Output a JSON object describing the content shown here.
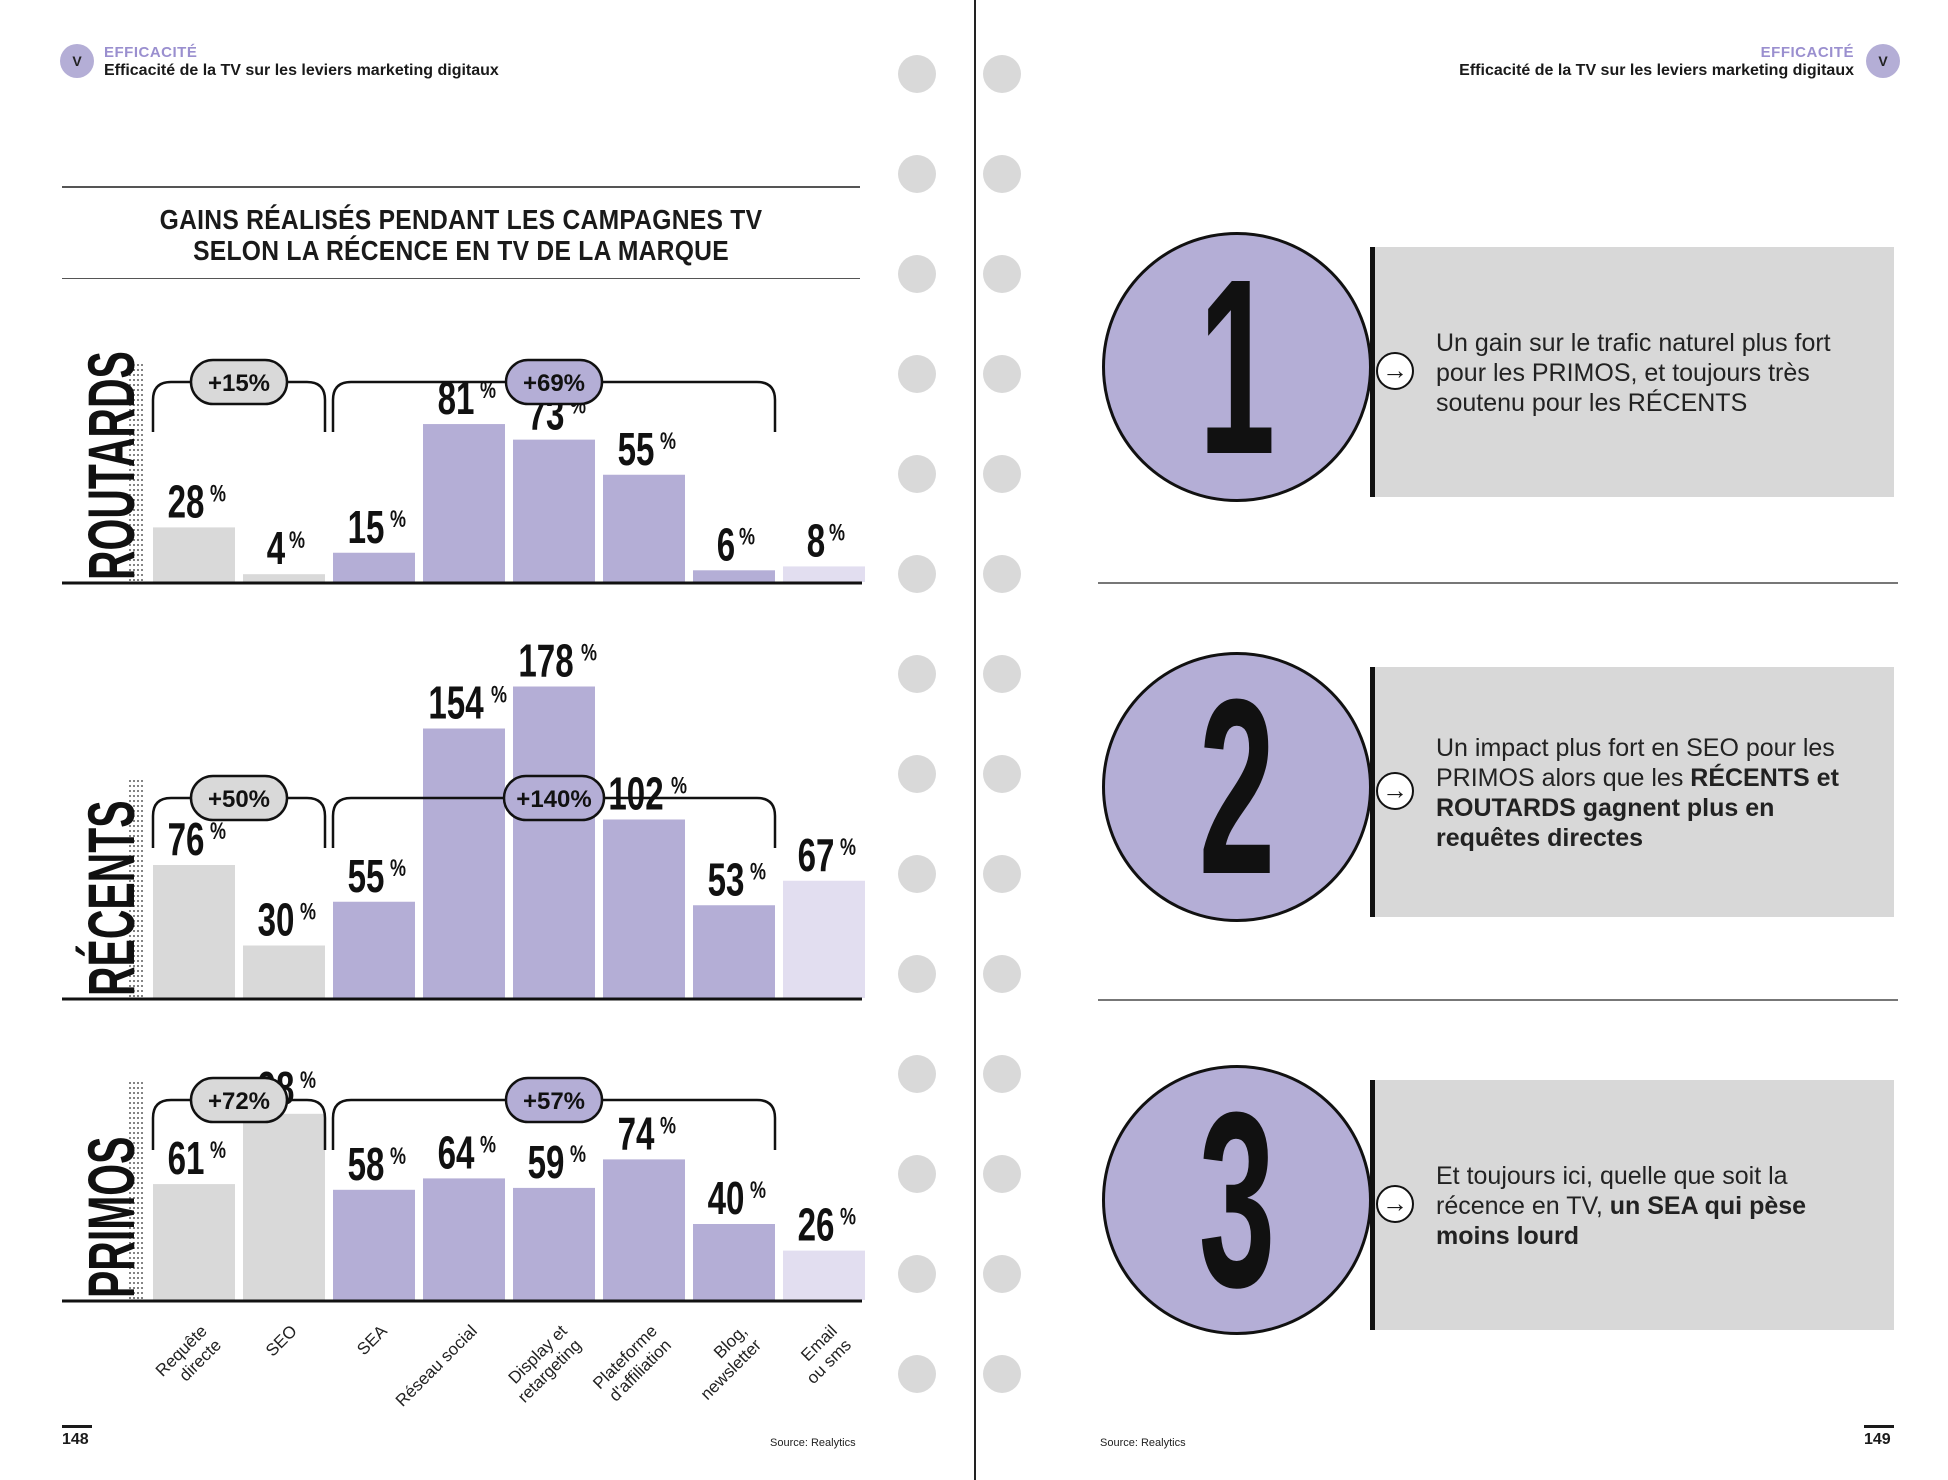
{
  "left_page": {
    "badge": "V",
    "section": "EFFICACITÉ",
    "subtitle": "Efficacité de la TV sur les leviers marketing digitaux",
    "page_number": "148",
    "source": "Source: Realytics"
  },
  "right_page": {
    "badge": "V",
    "section": "EFFICACITÉ",
    "subtitle": "Efficacité de la TV sur les leviers marketing digitaux",
    "page_number": "149",
    "source": "Source: Realytics"
  },
  "chart_data": {
    "type": "bar",
    "title_line1": "GAINS RÉALISÉS PENDANT LES CAMPAGNES TV",
    "title_line2": "SELON LA RÉCENCE EN TV DE LA MARQUE",
    "unit": "%",
    "categories": [
      "Requête directe",
      "SEO",
      "SEA",
      "Réseau social",
      "Display et retargeting",
      "Plateforme d'affiliation",
      "Blog, newsletter",
      "Email ou sms"
    ],
    "category_lines": [
      [
        "Requête",
        "directe"
      ],
      [
        "SEO"
      ],
      [
        "SEA"
      ],
      [
        "Réseau social"
      ],
      [
        "Display et",
        "retargeting"
      ],
      [
        "Plateforme",
        "d'affiliation"
      ],
      [
        "Blog,",
        "newsletter"
      ],
      [
        "Email",
        "ou sms"
      ]
    ],
    "series": [
      {
        "name": "ROUTARDS",
        "values": [
          28,
          4,
          15,
          81,
          73,
          55,
          6,
          8
        ],
        "group_gains": [
          "+15%",
          "+69%"
        ]
      },
      {
        "name": "RÉCENTS",
        "values": [
          76,
          30,
          55,
          154,
          178,
          102,
          53,
          67
        ],
        "group_gains": [
          "+50%",
          "+140%"
        ]
      },
      {
        "name": "PRIMOS",
        "values": [
          61,
          98,
          58,
          64,
          59,
          74,
          40,
          26
        ],
        "group_gains": [
          "+72%",
          "+57%"
        ]
      }
    ],
    "groups": [
      {
        "categories": [
          "Requête directe",
          "SEO"
        ]
      },
      {
        "categories": [
          "SEA",
          "Réseau social",
          "Display et retargeting",
          "Plateforme d'affiliation",
          "Blog, newsletter"
        ]
      }
    ],
    "colors": {
      "natural": "#d9d9d9",
      "paid": "#b4aed6",
      "other": "#e2def0"
    }
  },
  "points": [
    {
      "number": "1",
      "parts": [
        {
          "t": "Un gain sur le trafic naturel plus fort pour les PRIMOS, et toujours très soutenu pour les RÉCENTS",
          "b": false
        }
      ]
    },
    {
      "number": "2",
      "parts": [
        {
          "t": "Un impact plus fort en SEO pour les PRIMOS alors que les ",
          "b": false
        },
        {
          "t": "RÉCENTS et ROUTARDS gagnent plus en requêtes directes",
          "b": true
        }
      ]
    },
    {
      "number": "3",
      "parts": [
        {
          "t": "Et toujours ici, quelle que soit la récence en TV, ",
          "b": false
        },
        {
          "t": "un SEA qui pèse moins lourd",
          "b": true
        }
      ]
    }
  ],
  "colors": {
    "accent": "#b4aed6",
    "box": "#d8d8d8"
  }
}
